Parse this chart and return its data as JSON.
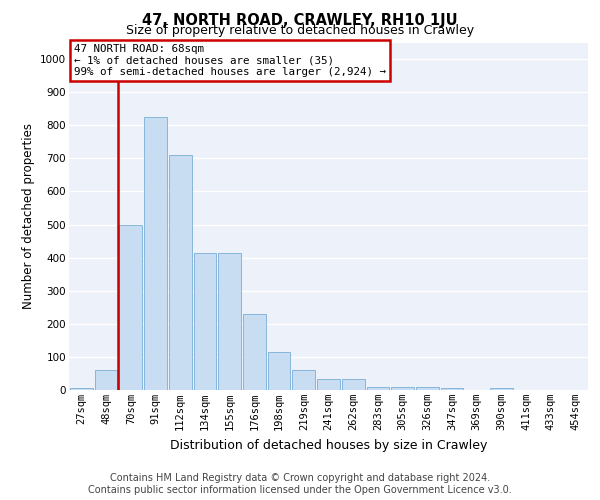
{
  "title": "47, NORTH ROAD, CRAWLEY, RH10 1JU",
  "subtitle": "Size of property relative to detached houses in Crawley",
  "xlabel": "Distribution of detached houses by size in Crawley",
  "ylabel": "Number of detached properties",
  "categories": [
    "27sqm",
    "48sqm",
    "70sqm",
    "91sqm",
    "112sqm",
    "134sqm",
    "155sqm",
    "176sqm",
    "198sqm",
    "219sqm",
    "241sqm",
    "262sqm",
    "283sqm",
    "305sqm",
    "326sqm",
    "347sqm",
    "369sqm",
    "390sqm",
    "411sqm",
    "433sqm",
    "454sqm"
  ],
  "values": [
    5,
    60,
    500,
    825,
    710,
    415,
    415,
    230,
    115,
    60,
    32,
    32,
    10,
    10,
    10,
    5,
    0,
    5,
    0,
    0,
    0
  ],
  "bar_color": "#c9ddf2",
  "bar_edge_color": "#7aaed6",
  "annotation_text": "47 NORTH ROAD: 68sqm\n← 1% of detached houses are smaller (35)\n99% of semi-detached houses are larger (2,924) →",
  "annotation_box_color": "#ffffff",
  "annotation_box_edge_color": "#cc0000",
  "vline_color": "#cc0000",
  "vline_x": 1.5,
  "ylim": [
    0,
    1050
  ],
  "yticks": [
    0,
    100,
    200,
    300,
    400,
    500,
    600,
    700,
    800,
    900,
    1000
  ],
  "footer_line1": "Contains HM Land Registry data © Crown copyright and database right 2024.",
  "footer_line2": "Contains public sector information licensed under the Open Government Licence v3.0.",
  "bg_color": "#edf2fa",
  "grid_color": "#ffffff",
  "title_fontsize": 10.5,
  "subtitle_fontsize": 9,
  "ylabel_fontsize": 8.5,
  "xlabel_fontsize": 9,
  "tick_fontsize": 7.5,
  "footer_fontsize": 7,
  "ann_fontsize": 7.8
}
